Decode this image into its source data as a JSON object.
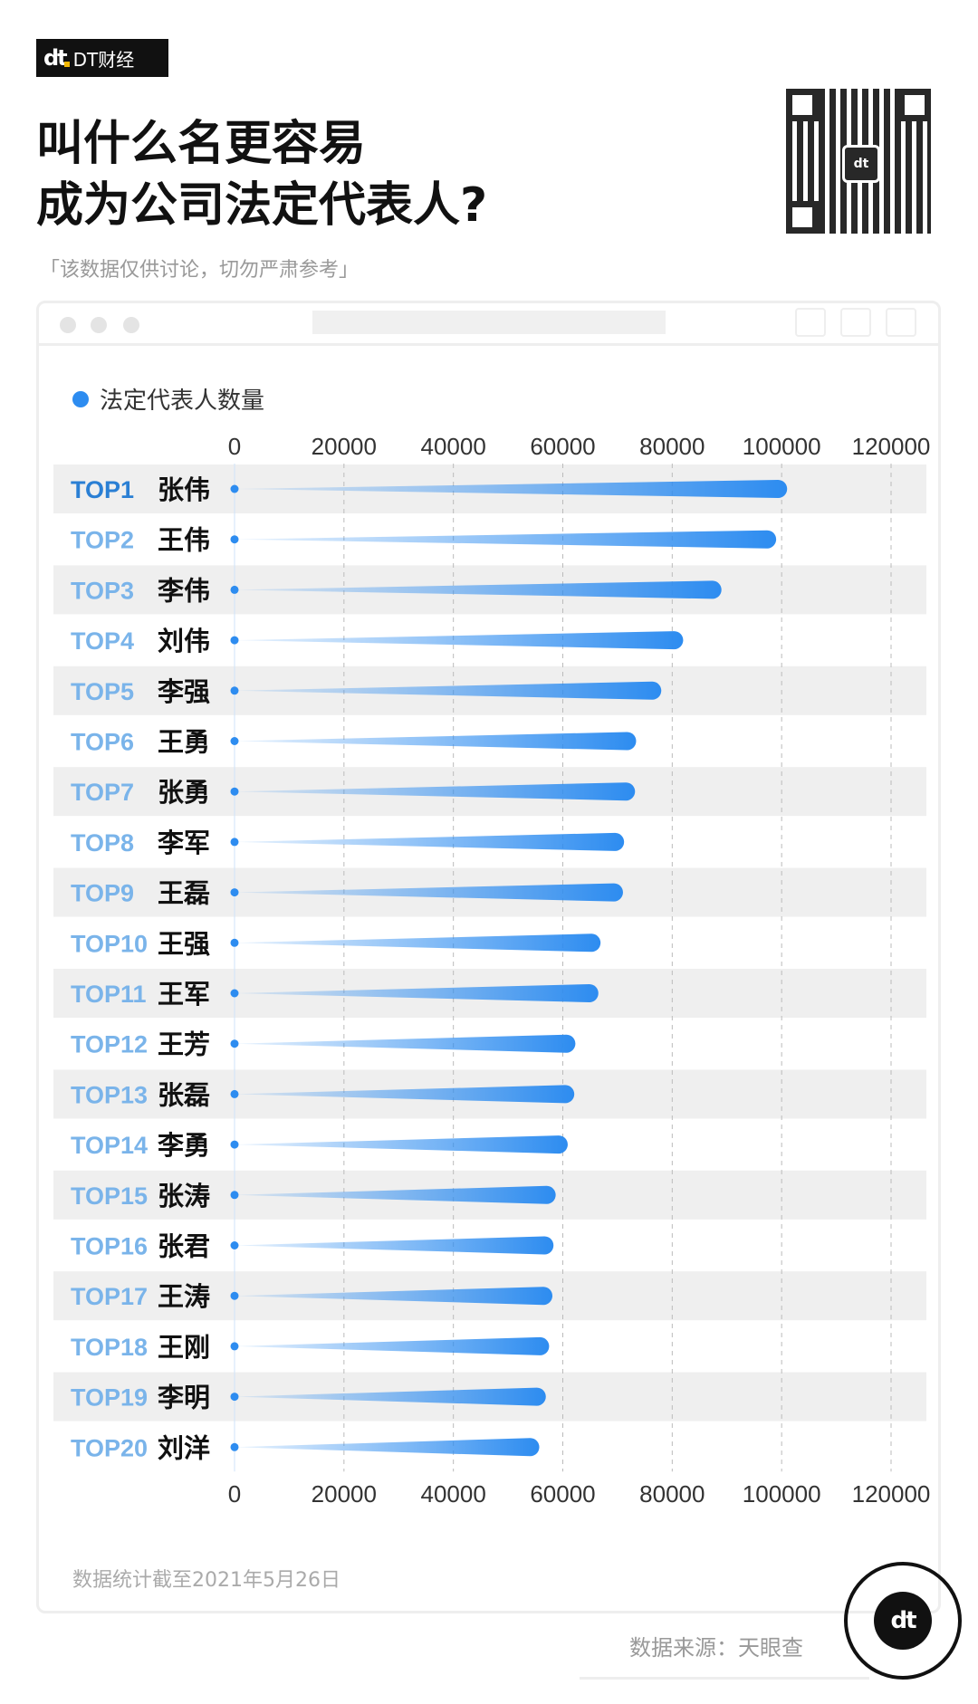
{
  "brand": {
    "logo": "dt",
    "name": "DT财经"
  },
  "title": {
    "line1": "叫什么名更容易",
    "line2": "成为公司法定代表人?"
  },
  "subtitle": "「该数据仅供讨论，切勿严肃参考」",
  "colors": {
    "bar": "#2d8cf0",
    "band": "#efefef",
    "rank_top": "#2a7fd4",
    "rank": "#7ab4ea"
  },
  "chart_data": {
    "type": "bar",
    "orientation": "horizontal",
    "legend": {
      "label": "法定代表人数量",
      "placement": "top-left"
    },
    "xlim": [
      0,
      120000
    ],
    "xticks": [
      "0",
      "20000",
      "40000",
      "60000",
      "80000",
      "100000",
      "120000"
    ],
    "grid": "vertical dashed",
    "ranks": [
      "TOP1",
      "TOP2",
      "TOP3",
      "TOP4",
      "TOP5",
      "TOP6",
      "TOP7",
      "TOP8",
      "TOP9",
      "TOP10",
      "TOP11",
      "TOP12",
      "TOP13",
      "TOP14",
      "TOP15",
      "TOP16",
      "TOP17",
      "TOP18",
      "TOP19",
      "TOP20"
    ],
    "categories": [
      "张伟",
      "王伟",
      "李伟",
      "刘伟",
      "李强",
      "王勇",
      "张勇",
      "李军",
      "王磊",
      "王强",
      "王军",
      "王芳",
      "张磊",
      "李勇",
      "张涛",
      "张君",
      "王涛",
      "王刚",
      "李明",
      "刘洋"
    ],
    "series": [
      {
        "name": "法定代表人数量",
        "values": [
          101000,
          99000,
          89000,
          82000,
          78000,
          73400,
          73200,
          71200,
          71000,
          66900,
          66500,
          62300,
          62100,
          60900,
          58700,
          58300,
          58100,
          57500,
          56900,
          55700
        ]
      }
    ]
  },
  "footer": {
    "note": "数据统计截至2021年5月26日",
    "source": "数据来源：天眼查",
    "badge": "dt"
  }
}
